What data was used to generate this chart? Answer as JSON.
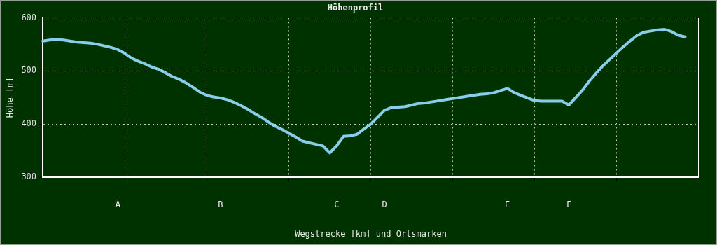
{
  "chart_data": {
    "type": "line",
    "title": "Höhenprofil",
    "xlabel": "Wegstrecke [km] und Ortsmarken",
    "ylabel": "Höhe [m]",
    "categories": [
      null,
      null,
      null,
      null,
      null,
      null,
      null,
      null,
      null,
      null,
      null,
      "A",
      null,
      null,
      null,
      null,
      null,
      null,
      null,
      null,
      null,
      null,
      null,
      null,
      null,
      null,
      "B",
      null,
      null,
      null,
      null,
      null,
      null,
      null,
      null,
      null,
      null,
      null,
      null,
      null,
      null,
      null,
      null,
      "C",
      null,
      null,
      null,
      null,
      null,
      null,
      "D",
      null,
      null,
      null,
      null,
      null,
      null,
      null,
      null,
      null,
      null,
      null,
      null,
      null,
      null,
      null,
      null,
      null,
      "E",
      null,
      null,
      null,
      null,
      null,
      null,
      null,
      null,
      "F",
      null,
      null,
      null,
      null,
      null,
      null,
      null,
      null,
      null,
      null,
      null,
      null,
      null,
      null,
      null,
      null,
      null,
      null,
      null
    ],
    "series": [
      {
        "color": "#87ceeb",
        "values": [
          556,
          558,
          559,
          558,
          556,
          554,
          553,
          552,
          550,
          547,
          544,
          540,
          533,
          524,
          518,
          513,
          507,
          503,
          496,
          489,
          484,
          477,
          469,
          460,
          454,
          451,
          449,
          446,
          441,
          435,
          428,
          420,
          413,
          404,
          396,
          390,
          383,
          376,
          368,
          365,
          362,
          359,
          346,
          359,
          377,
          378,
          381,
          391,
          400,
          413,
          426,
          431,
          432,
          433,
          436,
          439,
          440,
          442,
          444,
          446,
          448,
          450,
          452,
          454,
          456,
          457,
          459,
          463,
          467,
          459,
          454,
          449,
          444,
          443,
          443,
          443,
          443,
          436,
          450,
          464,
          481,
          496,
          510,
          522,
          534,
          546,
          557,
          567,
          573,
          575,
          577,
          578,
          574,
          567,
          564,
          null,
          null
        ]
      }
    ],
    "ylim": [
      300,
      600
    ],
    "yticks": [
      300,
      400,
      500,
      600
    ],
    "grid": true,
    "marker": "none"
  }
}
